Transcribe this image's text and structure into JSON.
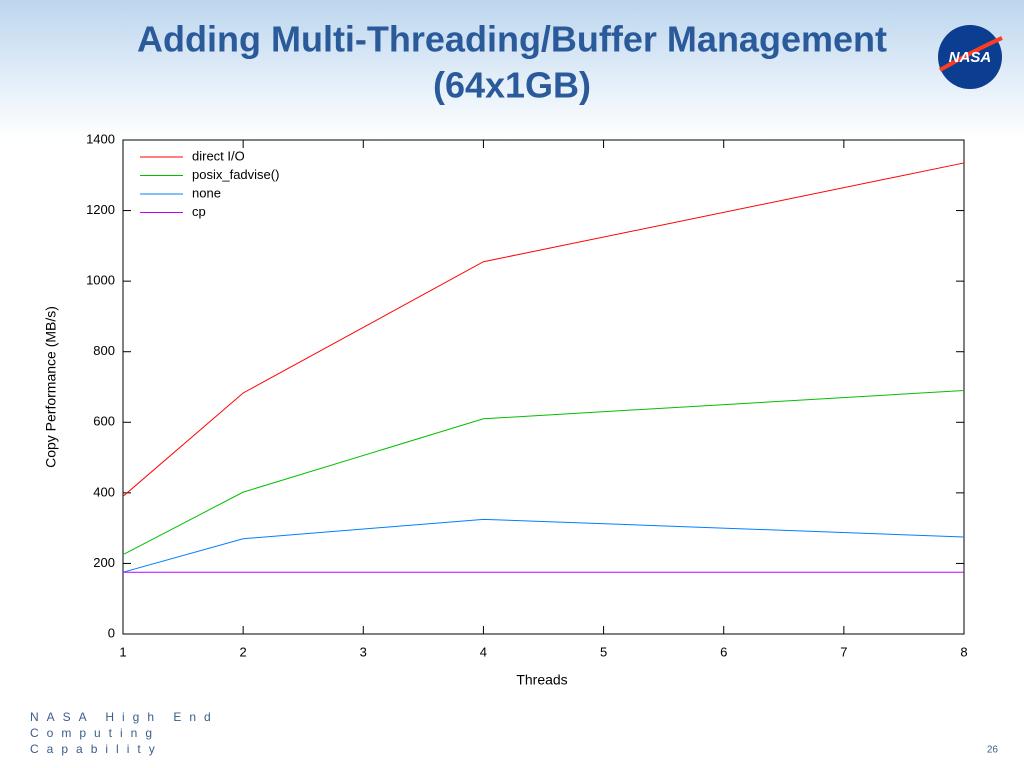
{
  "slide": {
    "title_lines": [
      "Adding Multi-Threading/Buffer Management",
      "(64x1GB)"
    ],
    "logo_text": "NASA",
    "footer_lines": [
      "NASA High End",
      "Computing",
      "Capability"
    ],
    "page_number": "26"
  },
  "chart_data": {
    "type": "line",
    "x_label": "Threads",
    "y_label": "Copy Performance (MB/s)",
    "x": [
      1,
      2,
      4,
      8
    ],
    "series": [
      {
        "name": "direct I/O",
        "color": "#ff0000",
        "values": [
          390,
          683,
          1055,
          1335
        ]
      },
      {
        "name": "posix_fadvise()",
        "color": "#00c000",
        "values": [
          225,
          402,
          610,
          690
        ]
      },
      {
        "name": "none",
        "color": "#0080ff",
        "values": [
          175,
          270,
          325,
          275
        ]
      },
      {
        "name": "cp",
        "color": "#c000ff",
        "values": [
          175,
          175,
          175,
          175
        ]
      }
    ],
    "xlim": [
      1,
      8
    ],
    "xticks": [
      1,
      2,
      3,
      4,
      5,
      6,
      7,
      8
    ],
    "ylim": [
      0,
      1400
    ],
    "yticks": [
      0,
      200,
      400,
      600,
      800,
      1000,
      1200,
      1400
    ],
    "grid": false,
    "legend": "upper-left"
  }
}
